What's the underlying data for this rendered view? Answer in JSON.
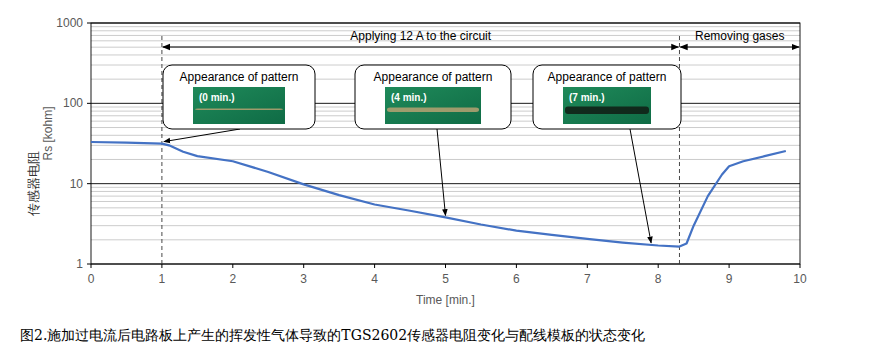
{
  "chart_data": {
    "type": "line",
    "x_label": "Time [min.]",
    "y_label": "Rs [kohm]",
    "y_label_2": "传感器电阻",
    "caption": "图2.施加过电流后电路板上产生的挥发性气体导致的TGS2602传感器电阻变化与配线模板的状态变化",
    "log": "y",
    "grid": true,
    "xlim": [
      0,
      10
    ],
    "xticks": [
      0,
      1,
      2,
      3,
      4,
      5,
      6,
      7,
      8,
      9,
      10
    ],
    "ylim": [
      1,
      1000
    ],
    "yticks": [
      1,
      10,
      100,
      1000
    ],
    "series": [
      {
        "name": "Rs",
        "color": "#4472c4",
        "x": [
          0,
          0.5,
          1,
          1.1,
          1.3,
          1.5,
          2,
          2.5,
          3,
          3.5,
          4,
          4.5,
          5,
          5.5,
          6,
          6.5,
          7,
          7.5,
          8,
          8.3,
          8.4,
          8.5,
          8.7,
          8.9,
          9,
          9.2,
          9.5,
          9.8
        ],
        "values": [
          33,
          32.5,
          31.5,
          30,
          25,
          22,
          19,
          14,
          9.8,
          7.2,
          5.5,
          4.6,
          3.8,
          3.1,
          2.6,
          2.3,
          2.05,
          1.85,
          1.7,
          1.65,
          1.8,
          3.0,
          7,
          13,
          16.5,
          19,
          22,
          25.5
        ]
      }
    ],
    "phases": [
      {
        "label": "Applying 12 A to the circuit",
        "start": 1,
        "end": 8.3
      },
      {
        "label": "Removing gases",
        "start": 8.3,
        "end": 10
      }
    ],
    "callouts": [
      {
        "title": "Appearance of pattern",
        "label": "(0 min.)",
        "x": 1
      },
      {
        "title": "Appearance of pattern",
        "label": "(4 min.)",
        "x": 5
      },
      {
        "title": "Appearance of pattern",
        "label": "(7 min.)",
        "x": 7.9
      }
    ]
  }
}
